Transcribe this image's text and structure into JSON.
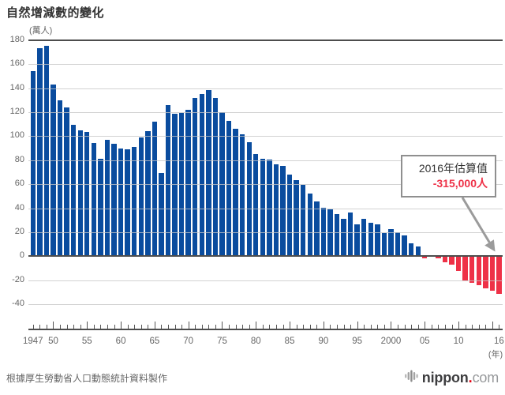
{
  "title": "自然增減數的變化",
  "source_note": "根據厚生勞動省人口動態統計資料製作",
  "logo": {
    "name": "nippon",
    "dot": ".",
    "tld": "com",
    "dot_color": "#e60012"
  },
  "annotation": {
    "line1": "2016年估算值",
    "line2": "-315,000人",
    "points_to_year": 2016
  },
  "chart_data": {
    "type": "bar",
    "title": "自然增減數的變化",
    "y_unit": "(萬人)",
    "x_unit": "(年)",
    "ylabel": "自然增減數 (萬人)",
    "xlabel": "年",
    "ylim": [
      -40,
      180
    ],
    "y_step": 20,
    "grid": true,
    "legend_position": "none",
    "x": [
      1947,
      1948,
      1949,
      1950,
      1951,
      1952,
      1953,
      1954,
      1955,
      1956,
      1957,
      1958,
      1959,
      1960,
      1961,
      1962,
      1963,
      1964,
      1965,
      1966,
      1967,
      1968,
      1969,
      1970,
      1971,
      1972,
      1973,
      1974,
      1975,
      1976,
      1977,
      1978,
      1979,
      1980,
      1981,
      1982,
      1983,
      1984,
      1985,
      1986,
      1987,
      1988,
      1989,
      1990,
      1991,
      1992,
      1993,
      1994,
      1995,
      1996,
      1997,
      1998,
      1999,
      2000,
      2001,
      2002,
      2003,
      2004,
      2005,
      2006,
      2007,
      2008,
      2009,
      2010,
      2011,
      2012,
      2013,
      2014,
      2015,
      2016
    ],
    "values": [
      154.1,
      173.1,
      175.1,
      143.3,
      129.9,
      124.0,
      109.5,
      104.8,
      103.7,
      94.1,
      81.4,
      96.9,
      93.6,
      89.9,
      89.4,
      90.8,
      98.9,
      104.4,
      112.3,
      69.1,
      126.1,
      118.5,
      119.6,
      122.1,
      131.6,
      135.5,
      138.3,
      131.9,
      119.9,
      112.9,
      106.5,
      101.3,
      95.3,
      85.4,
      80.9,
      80.4,
      76.9,
      75.0,
      67.9,
      63.2,
      59.5,
      52.1,
      45.8,
      40.1,
      39.3,
      35.2,
      31.0,
      36.2,
      26.5,
      31.0,
      27.8,
      26.7,
      19.6,
      22.9,
      20.0,
      17.1,
      10.9,
      8.2,
      -2.1,
      0.8,
      -1.9,
      -5.1,
      -7.2,
      -12.6,
      -20.2,
      -21.9,
      -23.9,
      -26.9,
      -28.5,
      -31.5
    ],
    "x_tick_labels": [
      {
        "year": 1947,
        "text": "1947"
      },
      {
        "year": 1950,
        "text": "50"
      },
      {
        "year": 1955,
        "text": "55"
      },
      {
        "year": 1960,
        "text": "60"
      },
      {
        "year": 1965,
        "text": "65"
      },
      {
        "year": 1970,
        "text": "70"
      },
      {
        "year": 1975,
        "text": "75"
      },
      {
        "year": 1980,
        "text": "80"
      },
      {
        "year": 1985,
        "text": "85"
      },
      {
        "year": 1990,
        "text": "90"
      },
      {
        "year": 1995,
        "text": "95"
      },
      {
        "year": 2000,
        "text": "2000"
      },
      {
        "year": 2005,
        "text": "05"
      },
      {
        "year": 2010,
        "text": "10"
      },
      {
        "year": 2016,
        "text": "16"
      }
    ],
    "colors": {
      "positive": "#0a4c9e",
      "negative": "#ee3147",
      "grid_light": "#c5c5c5",
      "grid_dark": "#4d4d4d",
      "label": "#666666"
    },
    "annotation": {
      "text": "2016年估算值",
      "value_text": "-315,000人",
      "year": 2016,
      "value": -31.5
    }
  }
}
